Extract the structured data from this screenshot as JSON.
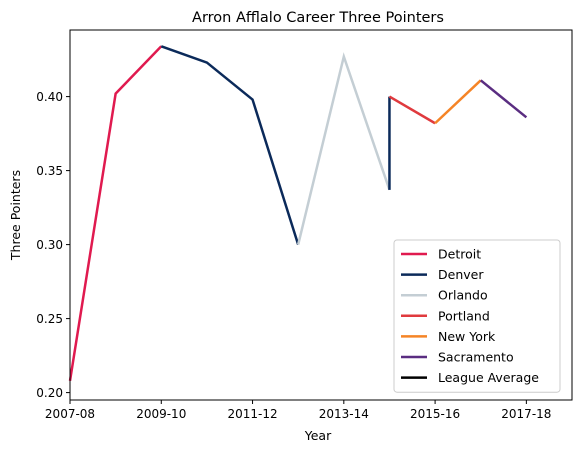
{
  "chart_data": {
    "type": "line",
    "title": "Arron Afflalo Career Three Pointers",
    "xlabel": "Year",
    "ylabel": "Three Pointers",
    "xlim": [
      2007,
      2018
    ],
    "ylim": [
      0.195,
      0.445
    ],
    "x_tick_labels": [
      "2007-08",
      "2009-10",
      "2011-12",
      "2013-14",
      "2015-16",
      "2017-18"
    ],
    "y_tick_labels": [
      "0.20",
      "0.25",
      "0.30",
      "0.35",
      "0.40"
    ],
    "legend_location": "lower-right",
    "grid": false,
    "series": [
      {
        "name": "Detroit",
        "color": "#e01a4f",
        "points": [
          [
            "2007-08",
            0.208
          ],
          [
            "2008-09",
            0.402
          ],
          [
            "2009-10",
            0.434
          ]
        ]
      },
      {
        "name": "Denver",
        "color": "#0b2a5a",
        "points": [
          [
            "2009-10",
            0.434
          ],
          [
            "2010-11",
            0.423
          ],
          [
            "2011-12",
            0.398
          ],
          [
            "2012-13",
            0.3
          ]
        ]
      },
      {
        "name": "Orlando",
        "color": "#c4ced4",
        "points": [
          [
            "2012-13",
            0.3
          ],
          [
            "2013-14",
            0.427
          ],
          [
            "2014-15",
            0.337
          ]
        ]
      },
      {
        "name": "Denver",
        "color": "#0b2a5a",
        "points": [
          [
            "2014-15",
            0.337
          ],
          [
            "2014-15",
            0.4
          ]
        ]
      },
      {
        "name": "Portland",
        "color": "#e03a3e",
        "points": [
          [
            "2014-15",
            0.4
          ],
          [
            "2015-16",
            0.382
          ]
        ]
      },
      {
        "name": "New York",
        "color": "#f58426",
        "points": [
          [
            "2015-16",
            0.382
          ],
          [
            "2016-17",
            0.411
          ]
        ]
      },
      {
        "name": "Sacramento",
        "color": "#5a2d81",
        "points": [
          [
            "2016-17",
            0.411
          ],
          [
            "2017-18",
            0.386
          ]
        ]
      }
    ],
    "legend": [
      {
        "label": "Detroit",
        "color": "#e01a4f"
      },
      {
        "label": "Denver",
        "color": "#0b2a5a"
      },
      {
        "label": "Orlando",
        "color": "#c4ced4"
      },
      {
        "label": "Portland",
        "color": "#e03a3e"
      },
      {
        "label": "New York",
        "color": "#f58426"
      },
      {
        "label": "Sacramento",
        "color": "#5a2d81"
      },
      {
        "label": "League Average",
        "color": "#000000"
      }
    ]
  }
}
